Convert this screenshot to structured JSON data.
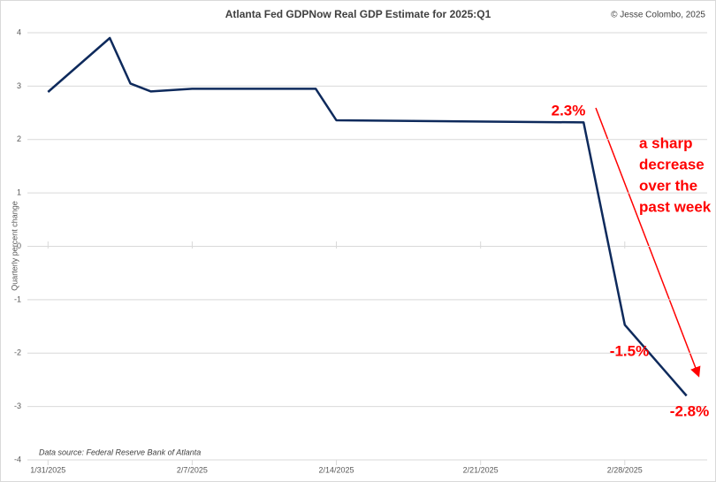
{
  "chart_data": {
    "type": "line",
    "title": "Atlanta Fed GDPNow Real GDP Estimate for 2025:Q1",
    "credit": "© Jesse Colombo, 2025",
    "y_label": "Quarterly percent change",
    "source": "Data source: Federal Reserve Bank of Atlanta",
    "x": [
      "1/31/2025",
      "2/3/2025",
      "2/4/2025",
      "2/5/2025",
      "2/7/2025",
      "2/13/2025",
      "2/14/2025",
      "2/26/2025",
      "2/28/2025",
      "3/3/2025"
    ],
    "series": [
      {
        "color": "#0e2a5c",
        "values": [
          2.89,
          3.9,
          3.05,
          2.9,
          2.95,
          2.95,
          2.36,
          2.32,
          -1.47,
          -2.8
        ]
      }
    ],
    "xlim": [
      "1/30/2025",
      "3/4/2025"
    ],
    "xticks": [
      "1/31/2025",
      "2/7/2025",
      "2/14/2025",
      "2/21/2025",
      "2/28/2025"
    ],
    "ylim": [
      -4,
      4
    ],
    "yticks": [
      -4,
      -3,
      -2,
      -1,
      0,
      1,
      2,
      3,
      4
    ],
    "grid": true,
    "annotations": [
      {
        "text": "2.3%",
        "color": "#ff0000"
      },
      {
        "text": [
          "a sharp",
          "decrease",
          "over the",
          "past week"
        ],
        "color": "#ff0000"
      },
      {
        "text": "-1.5%",
        "color": "#ff0000"
      },
      {
        "text": "-2.8%",
        "color": "#ff0000"
      }
    ]
  }
}
